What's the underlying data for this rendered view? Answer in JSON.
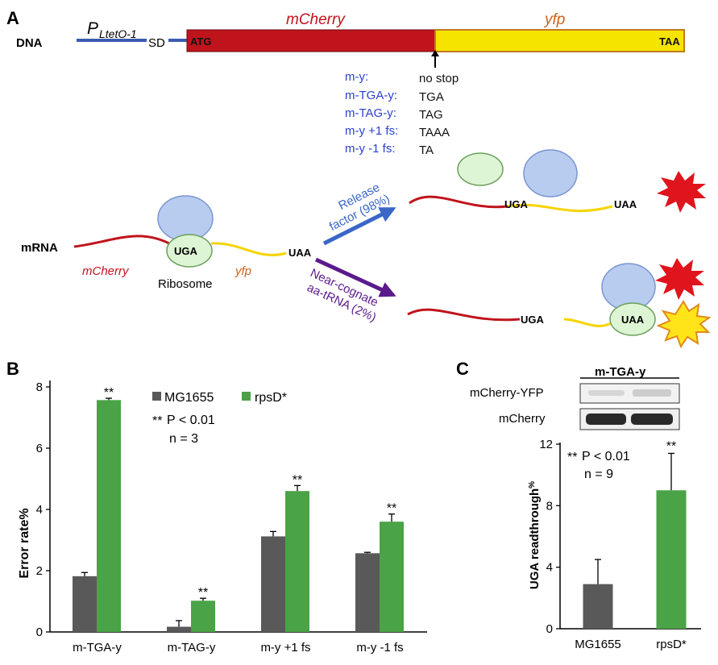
{
  "panel_a": {
    "letter": "A",
    "dna_label": "DNA",
    "promoter_main": "P",
    "promoter_sub": "LtetO-1",
    "sd_label": "SD",
    "atg_label": "ATG",
    "gene1": "mCherry",
    "gene2": "yfp",
    "taa_label": "TAA",
    "constructs": [
      {
        "name": "m-y:",
        "codon": "no stop"
      },
      {
        "name": "m-TGA-y:",
        "codon": "TGA"
      },
      {
        "name": "m-TAG-y:",
        "codon": "TAG"
      },
      {
        "name": "m-y +1 fs:",
        "codon": "TAAA"
      },
      {
        "name": "m-y -1 fs:",
        "codon": "TA"
      }
    ],
    "mrna_label": "mRNA",
    "mrna_gene1": "mCherry",
    "mrna_gene2": "yfp",
    "ribosome_label": "Ribosome",
    "codon_uga": "UGA",
    "codon_uaa": "UAA",
    "release_line1": "Release",
    "release_line2": "factor (98%)",
    "nearcog_line1": "Near-cognate",
    "nearcog_line2": "aa-tRNA (2%)",
    "upper_uga": "UGA",
    "upper_uaa": "UAA",
    "lower_uga": "UGA",
    "lower_uaa": "UAA",
    "colors": {
      "mcherry": "#c0141c",
      "yfp": "#f5e400",
      "blue_text": "#2b3fd1",
      "purple": "#5a1a8c",
      "arrow_blue": "#3a66c8"
    }
  },
  "panel_b": {
    "letter": "B",
    "legend": {
      "s1": "MG1655",
      "s2": "rpsD*"
    },
    "stats_line1": "P < 0.01",
    "stats_stars": "**",
    "stats_line2": "n = 3",
    "chart_data": {
      "type": "bar",
      "categories": [
        "m-TGA-y",
        "m-TAG-y",
        "m-y +1 fs",
        "m-y -1 fs"
      ],
      "series": [
        {
          "name": "MG1655",
          "values": [
            1.82,
            0.17,
            3.12,
            2.57
          ],
          "errors": [
            0.12,
            0.2,
            0.16,
            0.03
          ],
          "color": "#595959"
        },
        {
          "name": "rpsD*",
          "values": [
            7.57,
            1.02,
            4.6,
            3.6
          ],
          "errors": [
            0.06,
            0.08,
            0.18,
            0.25
          ],
          "color": "#4aa346"
        }
      ],
      "significance": [
        "**",
        "**",
        "**",
        "**"
      ],
      "ylabel": "Error rate%",
      "ylim": [
        0,
        8
      ],
      "yticks": [
        "0",
        "2",
        "4",
        "6",
        "8"
      ]
    }
  },
  "panel_c": {
    "letter": "C",
    "blot_title": "m-TGA-y",
    "blot_row1": "mCherry-YFP",
    "blot_row2": "mCherry",
    "stats_stars": "**",
    "stats_line1": "P < 0.01",
    "stats_line2": "n = 9",
    "chart_data": {
      "type": "bar",
      "categories": [
        "MG1655",
        "rpsD*"
      ],
      "values": [
        2.9,
        9.0
      ],
      "errors": [
        1.6,
        2.4
      ],
      "colors": [
        "#595959",
        "#4aa346"
      ],
      "significance": [
        "",
        "**"
      ],
      "ylabel_main": "UGA readthrough",
      "ylabel_sup": "%",
      "ylim": [
        0,
        12
      ],
      "yticks": [
        "0",
        "4",
        "8",
        "12"
      ]
    }
  }
}
